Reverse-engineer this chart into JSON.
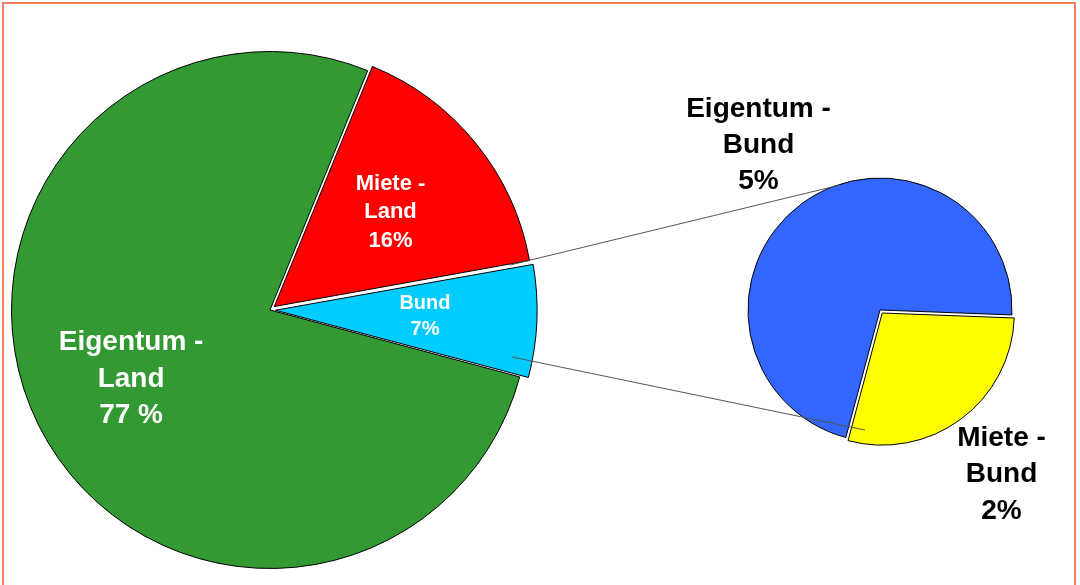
{
  "chart_data": [
    {
      "type": "pie",
      "categories": [
        "Eigentum - Land",
        "Miete - Land",
        "Bund"
      ],
      "values": [
        77,
        16,
        7
      ],
      "colors": [
        "#339933",
        "#ff0000",
        "#00ccff"
      ],
      "value_labels": [
        "77 %",
        "16%",
        "7%"
      ],
      "legend": false
    },
    {
      "type": "pie",
      "categories": [
        "Eigentum - Bund",
        "Miete - Bund"
      ],
      "values": [
        5,
        2
      ],
      "colors": [
        "#3366ff",
        "#ffff00"
      ],
      "value_labels": [
        "5%",
        "2%"
      ],
      "legend": false
    }
  ]
}
